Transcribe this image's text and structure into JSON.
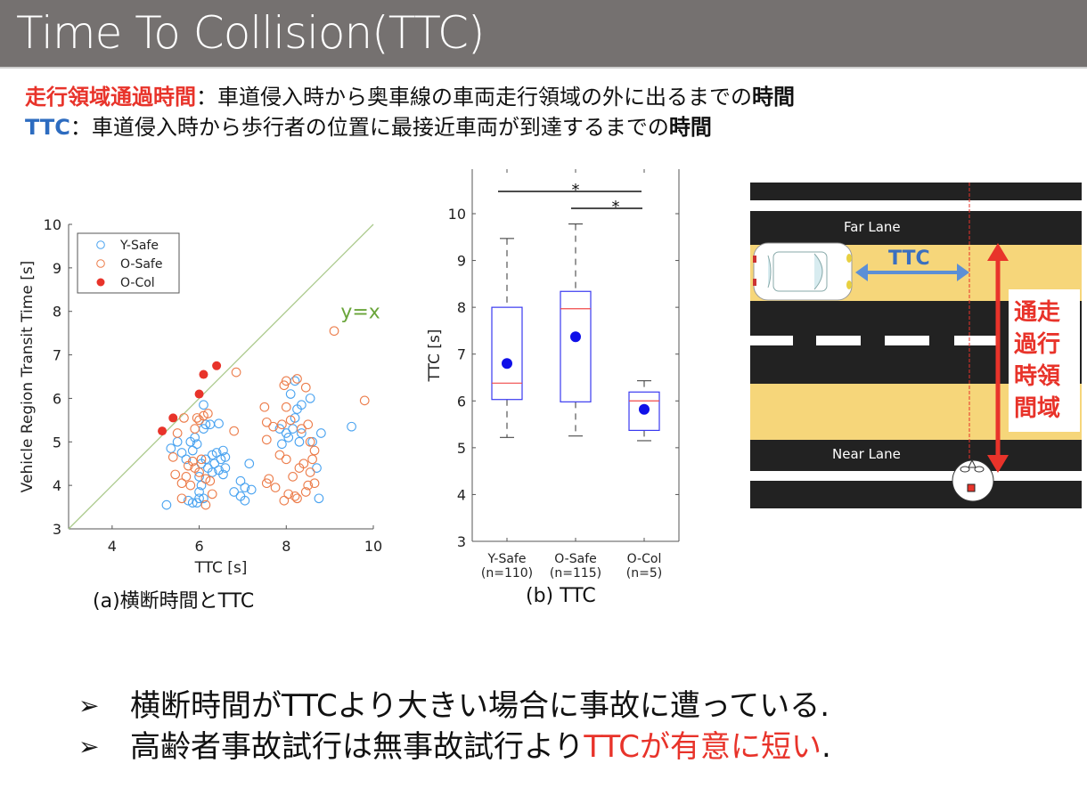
{
  "header": {
    "title": "Time To Collision(TTC)"
  },
  "definitions": [
    {
      "term": "走行領域通過時間",
      "term_color": "#e8332a",
      "separator": "：",
      "text": "車道侵入時から奥車線の車両走行領域の外に出るまでの",
      "emph": "時間"
    },
    {
      "term": "TTC",
      "term_color": "#2d6cc0",
      "separator": "：",
      "text": "車道侵入時から歩行者の位置に最接近車両が到達するまでの",
      "emph": "時間"
    }
  ],
  "figure_a": {
    "caption": "(a)横断時間とTTC"
  },
  "figure_b": {
    "caption": "(b) TTC"
  },
  "diagram": {
    "far_lane_label": "Far Lane",
    "near_lane_label": "Near Lane",
    "ttc_label": "TTC",
    "transit_label": [
      "通走",
      "過行",
      "時領",
      "間域"
    ],
    "colors": {
      "road": "#222222",
      "lane_fill": "#f6d67a",
      "ttc_arrow": "#5b8fd6",
      "transit_arrow": "#e8332a"
    }
  },
  "conclusions": [
    {
      "bullet": "➢",
      "text": "横断時間がTTCより大きい場合に事故に遭っている.",
      "highlight": ""
    },
    {
      "bullet": "➢",
      "text_before": "高齢者事故試行は無事故試行より",
      "highlight": "TTCが有意に短い",
      "text_after": "."
    }
  ],
  "chart_data": [
    {
      "type": "scatter",
      "title": "(a)横断時間とTTC",
      "xlabel": "TTC [s]",
      "ylabel": "Vehicle Region Transit Time [s]",
      "xlim": [
        3,
        10
      ],
      "ylim": [
        3,
        10
      ],
      "xticks": [
        4,
        6,
        8,
        10
      ],
      "yticks": [
        3,
        4,
        5,
        6,
        7,
        8,
        9,
        10
      ],
      "grid": false,
      "legend_position": "upper-left",
      "annotations": [
        {
          "text": "y=x",
          "x": 9.7,
          "y": 8.0,
          "color": "#6aa53a"
        }
      ],
      "reference_line": {
        "from": [
          3,
          3
        ],
        "to": [
          10,
          10
        ],
        "color": "#a9c98a"
      },
      "series": [
        {
          "name": "Y-Safe",
          "marker": "open-circle",
          "color": "#4aa3f0",
          "points": [
            [
              5.25,
              3.55
            ],
            [
              5.35,
              4.85
            ],
            [
              5.5,
              5.0
            ],
            [
              5.6,
              4.75
            ],
            [
              5.7,
              4.6
            ],
            [
              5.75,
              3.65
            ],
            [
              5.8,
              5.0
            ],
            [
              5.85,
              4.8
            ],
            [
              5.85,
              3.6
            ],
            [
              5.9,
              5.1
            ],
            [
              5.95,
              4.95
            ],
            [
              5.95,
              3.6
            ],
            [
              6.0,
              3.7
            ],
            [
              6.0,
              3.85
            ],
            [
              6.0,
              4.2
            ],
            [
              6.05,
              4.0
            ],
            [
              6.05,
              4.5
            ],
            [
              6.1,
              5.85
            ],
            [
              6.1,
              5.3
            ],
            [
              6.1,
              3.7
            ],
            [
              6.15,
              5.4
            ],
            [
              6.15,
              4.6
            ],
            [
              6.2,
              4.4
            ],
            [
              6.25,
              5.4
            ],
            [
              6.3,
              4.7
            ],
            [
              6.3,
              4.3
            ],
            [
              6.35,
              4.5
            ],
            [
              6.4,
              4.75
            ],
            [
              6.45,
              5.42
            ],
            [
              6.45,
              4.35
            ],
            [
              6.5,
              4.6
            ],
            [
              6.55,
              4.8
            ],
            [
              6.55,
              4.25
            ],
            [
              6.6,
              4.65
            ],
            [
              6.6,
              4.4
            ],
            [
              6.8,
              3.85
            ],
            [
              6.95,
              4.1
            ],
            [
              6.95,
              3.75
            ],
            [
              7.05,
              3.95
            ],
            [
              7.05,
              3.65
            ],
            [
              7.15,
              4.5
            ],
            [
              7.2,
              3.9
            ],
            [
              7.85,
              5.3
            ],
            [
              7.9,
              4.95
            ],
            [
              8.0,
              5.2
            ],
            [
              8.05,
              5.1
            ],
            [
              8.1,
              6.1
            ],
            [
              8.15,
              5.3
            ],
            [
              8.2,
              6.4
            ],
            [
              8.2,
              5.55
            ],
            [
              8.25,
              5.75
            ],
            [
              8.3,
              5.0
            ],
            [
              8.35,
              5.85
            ],
            [
              8.35,
              5.2
            ],
            [
              8.55,
              6.0
            ],
            [
              8.6,
              5.0
            ],
            [
              8.7,
              4.4
            ],
            [
              8.75,
              3.7
            ],
            [
              8.8,
              5.2
            ],
            [
              9.5,
              5.35
            ]
          ]
        },
        {
          "name": "O-Safe",
          "marker": "open-circle",
          "color": "#ec7c4a",
          "points": [
            [
              5.4,
              4.65
            ],
            [
              5.45,
              4.25
            ],
            [
              5.5,
              5.2
            ],
            [
              5.6,
              3.7
            ],
            [
              5.6,
              4.05
            ],
            [
              5.65,
              5.55
            ],
            [
              5.7,
              4.2
            ],
            [
              5.75,
              4.45
            ],
            [
              5.8,
              4.0
            ],
            [
              5.85,
              4.55
            ],
            [
              5.9,
              4.4
            ],
            [
              5.9,
              5.3
            ],
            [
              5.95,
              5.55
            ],
            [
              6.0,
              5.5
            ],
            [
              6.0,
              4.3
            ],
            [
              6.05,
              4.6
            ],
            [
              6.1,
              5.6
            ],
            [
              6.15,
              3.55
            ],
            [
              6.15,
              4.15
            ],
            [
              6.2,
              5.65
            ],
            [
              6.25,
              4.1
            ],
            [
              6.3,
              3.8
            ],
            [
              6.8,
              5.25
            ],
            [
              6.85,
              6.6
            ],
            [
              7.5,
              5.8
            ],
            [
              7.55,
              5.45
            ],
            [
              7.55,
              5.05
            ],
            [
              7.55,
              4.05
            ],
            [
              7.6,
              4.15
            ],
            [
              7.7,
              5.35
            ],
            [
              7.75,
              3.95
            ],
            [
              7.85,
              4.7
            ],
            [
              7.9,
              5.4
            ],
            [
              7.95,
              6.3
            ],
            [
              7.95,
              3.65
            ],
            [
              8.0,
              6.4
            ],
            [
              8.0,
              5.8
            ],
            [
              8.0,
              4.6
            ],
            [
              8.05,
              3.8
            ],
            [
              8.1,
              5.5
            ],
            [
              8.15,
              4.2
            ],
            [
              8.2,
              3.75
            ],
            [
              8.25,
              6.45
            ],
            [
              8.25,
              3.7
            ],
            [
              8.3,
              4.4
            ],
            [
              8.35,
              5.3
            ],
            [
              8.4,
              4.5
            ],
            [
              8.45,
              6.25
            ],
            [
              8.45,
              3.85
            ],
            [
              8.5,
              5.4
            ],
            [
              8.5,
              4.0
            ],
            [
              8.55,
              4.3
            ],
            [
              8.55,
              5.0
            ],
            [
              8.6,
              4.6
            ],
            [
              8.65,
              4.8
            ],
            [
              8.65,
              4.05
            ],
            [
              9.1,
              7.55
            ],
            [
              9.8,
              5.95
            ]
          ]
        },
        {
          "name": "O-Col",
          "marker": "filled-circle",
          "color": "#e8332a",
          "points": [
            [
              5.15,
              5.25
            ],
            [
              5.4,
              5.55
            ],
            [
              6.0,
              6.1
            ],
            [
              6.1,
              6.55
            ],
            [
              6.4,
              6.75
            ]
          ]
        }
      ]
    },
    {
      "type": "box",
      "title": "(b) TTC",
      "xlabel": "",
      "ylabel": "TTC [s]",
      "ylim": [
        3,
        11
      ],
      "yticks": [
        3,
        4,
        5,
        6,
        7,
        8,
        9,
        10
      ],
      "categories": [
        "Y-Safe (n=110)",
        "O-Safe (n=115)",
        "O-Col (n=5)"
      ],
      "category_names": [
        "Y-Safe",
        "O-Safe",
        "O-Col"
      ],
      "category_n": [
        "(n=110)",
        "(n=115)",
        "(n=5)"
      ],
      "series": [
        {
          "name": "Y-Safe",
          "min": 5.22,
          "q1": 6.03,
          "median": 6.38,
          "q3": 8.0,
          "max": 9.47,
          "mean": 6.8
        },
        {
          "name": "O-Safe",
          "min": 5.25,
          "q1": 5.98,
          "median": 7.97,
          "q3": 8.34,
          "max": 9.78,
          "mean": 7.37
        },
        {
          "name": "O-Col",
          "min": 5.15,
          "q1": 5.37,
          "median": 6.0,
          "q3": 6.19,
          "max": 6.43,
          "mean": 5.82
        }
      ],
      "significance": [
        {
          "from": "Y-Safe",
          "to": "O-Col",
          "label": "*"
        },
        {
          "from": "O-Safe",
          "to": "O-Col",
          "label": "*"
        }
      ],
      "colors": {
        "box": "#3a3af0",
        "median": "#f04a4a",
        "mean": "#1010e8",
        "whisker": "#333333"
      }
    }
  ]
}
